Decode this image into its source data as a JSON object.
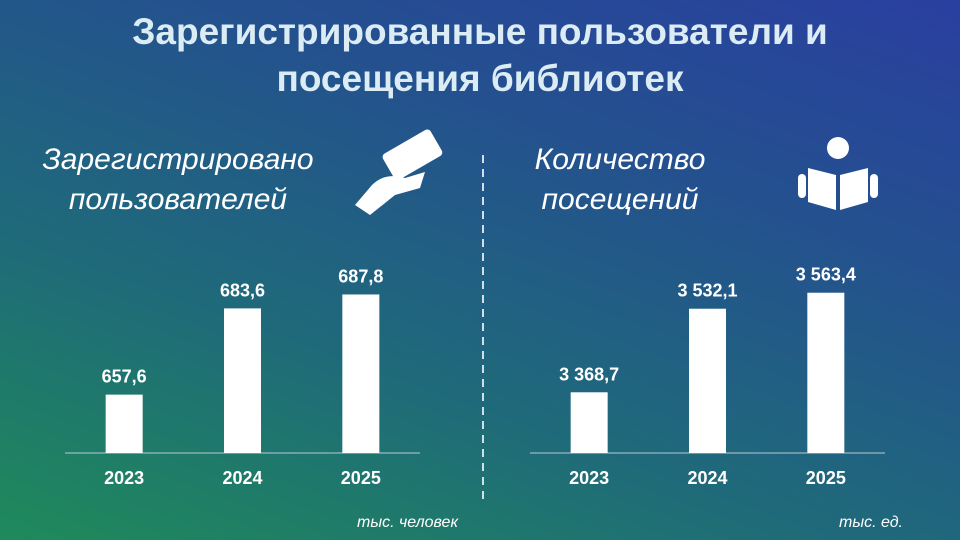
{
  "title": "Зарегистрированные пользователи и посещения библиотек",
  "chart_data": [
    {
      "type": "bar",
      "title": "Зарегистрировано пользователей",
      "unit": "тыс. человек",
      "categories": [
        "2023",
        "2024",
        "2025"
      ],
      "values": [
        657.6,
        683.6,
        687.8
      ],
      "value_labels": [
        "657,6",
        "683,6",
        "687,8"
      ],
      "color": "#ffffff",
      "ylim": [
        640,
        700
      ]
    },
    {
      "type": "bar",
      "title": "Количество посещений",
      "unit": "тыс. ед.",
      "categories": [
        "2023",
        "2024",
        "2025"
      ],
      "values": [
        3368.7,
        3532.1,
        3563.4
      ],
      "value_labels": [
        "3 368,7",
        "3 532,1",
        "3 563,4"
      ],
      "color": "#ffffff",
      "ylim": [
        3250,
        3600
      ]
    }
  ]
}
